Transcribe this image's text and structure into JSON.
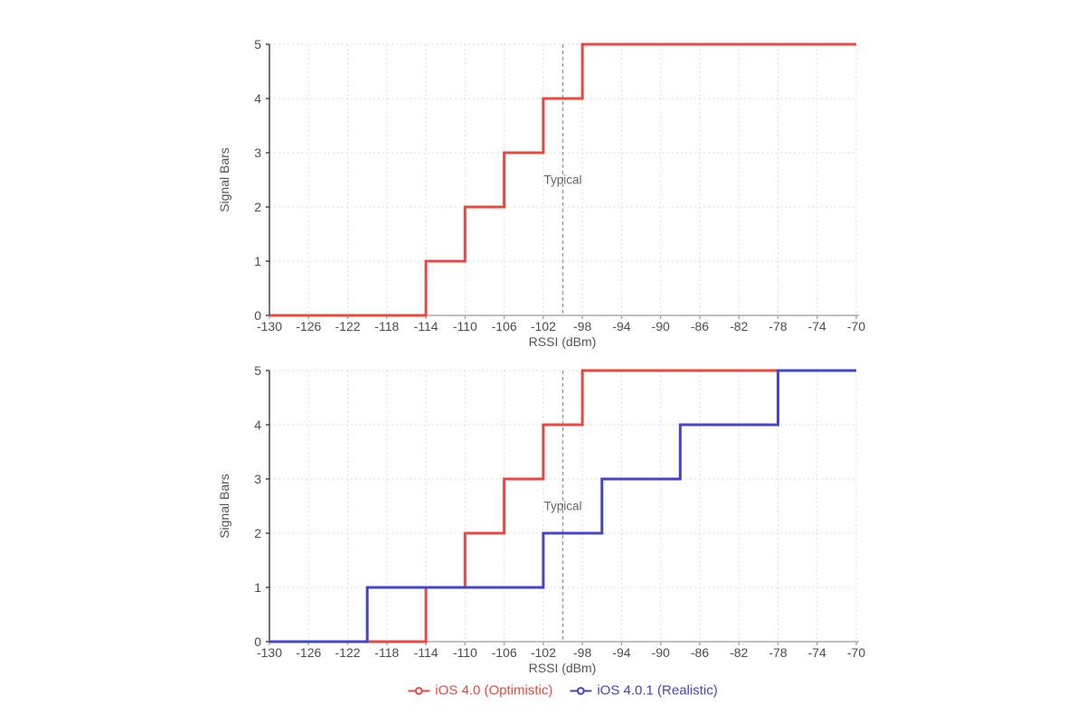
{
  "colors": {
    "grid": "#dedede",
    "x_axis": "#aaaaaa",
    "y_axis": "#444444",
    "tick_label": "#4d4d4d",
    "axis_title": "#555555",
    "annotation_line": "#888888",
    "annotation_text": "#666666",
    "series_red": "#e8483f",
    "series_blue": "#4444c8"
  },
  "legend": {
    "items": [
      {
        "label": "iOS 4.0 (Optimistic)",
        "color": "#e8483f"
      },
      {
        "label": "iOS 4.0.1 (Realistic)",
        "color": "#4444c8"
      }
    ]
  },
  "chart_data": [
    {
      "type": "line",
      "subtype": "step",
      "title": "",
      "xlabel": "RSSI (dBm)",
      "ylabel": "Signal Bars",
      "xlim": [
        -130,
        -70
      ],
      "ylim": [
        0,
        5
      ],
      "xticks": [
        -130,
        -126,
        -122,
        -118,
        -114,
        -110,
        -106,
        -102,
        -98,
        -94,
        -90,
        -86,
        -82,
        -78,
        -74,
        -70
      ],
      "yticks": [
        0,
        1,
        2,
        3,
        4,
        5
      ],
      "grid": true,
      "legend_position": "none",
      "annotations": [
        {
          "label": "Typical",
          "x": -100,
          "text_y": 2.5
        }
      ],
      "series": [
        {
          "name": "iOS 4.0 (Optimistic)",
          "color": "#e8483f",
          "steps": [
            [
              -130,
              0
            ],
            [
              -114,
              1
            ],
            [
              -110,
              2
            ],
            [
              -106,
              3
            ],
            [
              -102,
              4
            ],
            [
              -98,
              5
            ]
          ],
          "x_end": -70
        }
      ]
    },
    {
      "type": "line",
      "subtype": "step",
      "title": "",
      "xlabel": "RSSI (dBm)",
      "ylabel": "Signal Bars",
      "xlim": [
        -130,
        -70
      ],
      "ylim": [
        0,
        5
      ],
      "xticks": [
        -130,
        -126,
        -122,
        -118,
        -114,
        -110,
        -106,
        -102,
        -98,
        -94,
        -90,
        -86,
        -82,
        -78,
        -74,
        -70
      ],
      "yticks": [
        0,
        1,
        2,
        3,
        4,
        5
      ],
      "grid": true,
      "legend_position": "bottom",
      "annotations": [
        {
          "label": "Typical",
          "x": -100,
          "text_y": 2.5
        }
      ],
      "series": [
        {
          "name": "iOS 4.0 (Optimistic)",
          "color": "#e8483f",
          "steps": [
            [
              -130,
              0
            ],
            [
              -114,
              1
            ],
            [
              -110,
              2
            ],
            [
              -106,
              3
            ],
            [
              -102,
              4
            ],
            [
              -98,
              5
            ]
          ],
          "x_end": -70
        },
        {
          "name": "iOS 4.0.1 (Realistic)",
          "color": "#4444c8",
          "steps": [
            [
              -130,
              0
            ],
            [
              -120,
              1
            ],
            [
              -102,
              2
            ],
            [
              -96,
              3
            ],
            [
              -88,
              4
            ],
            [
              -78,
              5
            ]
          ],
          "x_end": -70
        }
      ]
    }
  ]
}
